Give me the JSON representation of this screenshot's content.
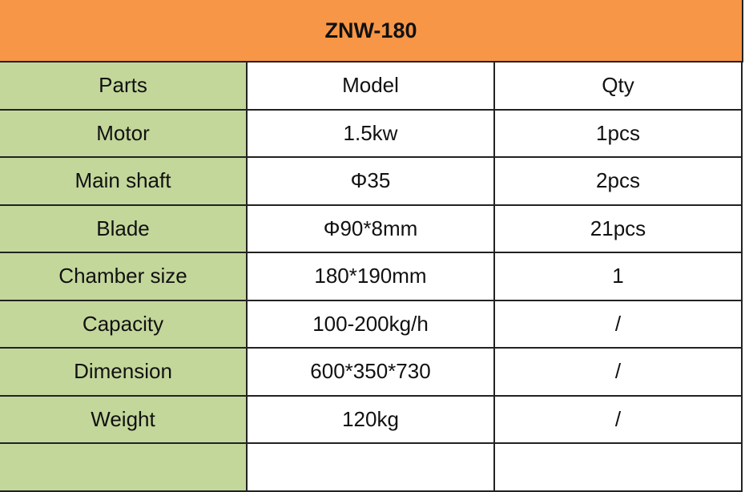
{
  "title": "ZNW-180",
  "headers": [
    "Parts",
    "Model",
    "Qty"
  ],
  "rows": [
    [
      "Motor",
      "1.5kw",
      "1pcs"
    ],
    [
      "Main shaft",
      "Φ35",
      "2pcs"
    ],
    [
      "Blade",
      "Φ90*8mm",
      "21pcs"
    ],
    [
      "Chamber size",
      "180*190mm",
      "1"
    ],
    [
      "Capacity",
      "100-200kg/h",
      "/"
    ],
    [
      "Dimension",
      "600*350*730",
      "/"
    ],
    [
      "Weight",
      "120kg",
      "/"
    ]
  ],
  "colors": {
    "title_bg": "#f79646",
    "parts_bg": "#c4d79b"
  }
}
